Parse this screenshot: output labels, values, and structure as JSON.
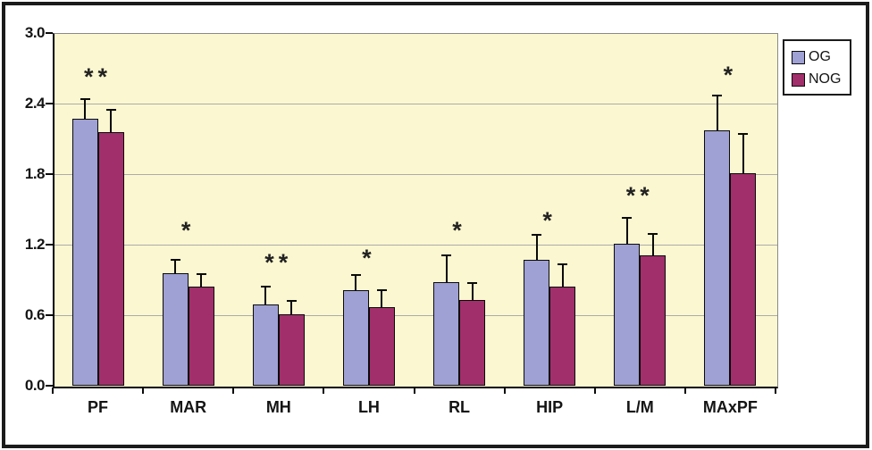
{
  "chart_data": {
    "type": "bar",
    "title": "",
    "xlabel": "",
    "ylabel": "",
    "categories": [
      "PF",
      "MAR",
      "MH",
      "LH",
      "RL",
      "HIP",
      "L/M",
      "MAxPF"
    ],
    "series": [
      {
        "name": "OG",
        "color": "#9FA0D4",
        "values": [
          2.27,
          0.96,
          0.69,
          0.81,
          0.88,
          1.07,
          1.21,
          2.17
        ],
        "errors": [
          0.17,
          0.11,
          0.15,
          0.13,
          0.23,
          0.21,
          0.22,
          0.3
        ]
      },
      {
        "name": "NOG",
        "color": "#A12F6B",
        "values": [
          2.16,
          0.84,
          0.61,
          0.67,
          0.73,
          0.84,
          1.11,
          1.81
        ],
        "errors": [
          0.19,
          0.11,
          0.11,
          0.14,
          0.14,
          0.19,
          0.18,
          0.33
        ]
      }
    ],
    "significance": [
      {
        "category": "PF",
        "marker": "**",
        "y": 2.64
      },
      {
        "category": "MAR",
        "marker": "*",
        "y": 1.34
      },
      {
        "category": "MH",
        "marker": "**",
        "y": 1.06
      },
      {
        "category": "LH",
        "marker": "*",
        "y": 1.1
      },
      {
        "category": "RL",
        "marker": "*",
        "y": 1.34
      },
      {
        "category": "HIP",
        "marker": "*",
        "y": 1.42
      },
      {
        "category": "L/M",
        "marker": "**",
        "y": 1.63
      },
      {
        "category": "MAxPF",
        "marker": "*",
        "y": 2.66
      }
    ],
    "yticks": [
      0.0,
      0.6,
      1.2,
      1.8,
      2.4,
      3.0
    ],
    "ytick_labels": [
      "0.0",
      "0.6",
      "1.2",
      "1.8",
      "2.4",
      "3.0"
    ],
    "ylim": [
      0,
      3.0
    ],
    "grid": true,
    "legend_position": "top-right",
    "plot_bg_color": "#FBF7D0",
    "grid_color": "#ABABAB",
    "error_bar_color": "#0A0A0A"
  },
  "legend": {
    "items": [
      {
        "label": "OG"
      },
      {
        "label": "NOG"
      }
    ]
  }
}
